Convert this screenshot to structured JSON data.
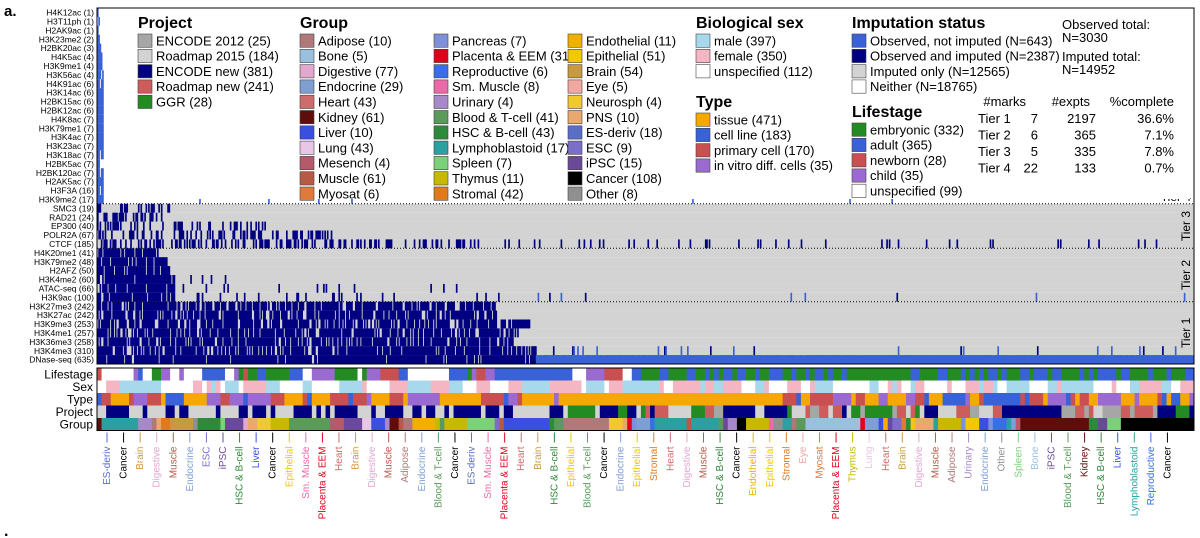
{
  "panel_label": "a.",
  "footer_mark": ".",
  "chart_data": {
    "type": "heatmap",
    "title": "",
    "marks": [
      {
        "name": "H4K12ac",
        "n": 1,
        "tier": 4
      },
      {
        "name": "H3T11ph",
        "n": 1,
        "tier": 4
      },
      {
        "name": "H2AK9ac",
        "n": 1,
        "tier": 4
      },
      {
        "name": "H3K23me2",
        "n": 2,
        "tier": 4
      },
      {
        "name": "H2BK20ac",
        "n": 3,
        "tier": 4
      },
      {
        "name": "H4K5ac",
        "n": 4,
        "tier": 4
      },
      {
        "name": "H3K9me1",
        "n": 4,
        "tier": 4
      },
      {
        "name": "H3K56ac",
        "n": 4,
        "tier": 4
      },
      {
        "name": "H4K91ac",
        "n": 6,
        "tier": 4
      },
      {
        "name": "H3K14ac",
        "n": 6,
        "tier": 4
      },
      {
        "name": "H2BK15ac",
        "n": 6,
        "tier": 4
      },
      {
        "name": "H2BK12ac",
        "n": 6,
        "tier": 4
      },
      {
        "name": "H4K8ac",
        "n": 7,
        "tier": 4
      },
      {
        "name": "H3K79me1",
        "n": 7,
        "tier": 4
      },
      {
        "name": "H3K4ac",
        "n": 7,
        "tier": 4
      },
      {
        "name": "H3K23ac",
        "n": 7,
        "tier": 4
      },
      {
        "name": "H3K18ac",
        "n": 7,
        "tier": 4
      },
      {
        "name": "H2BK5ac",
        "n": 7,
        "tier": 4
      },
      {
        "name": "H2BK120ac",
        "n": 7,
        "tier": 4
      },
      {
        "name": "H2AK5ac",
        "n": 7,
        "tier": 4
      },
      {
        "name": "H3F3A",
        "n": 16,
        "tier": 4
      },
      {
        "name": "H3K9me2",
        "n": 17,
        "tier": 4
      },
      {
        "name": "SMC3",
        "n": 19,
        "tier": 3
      },
      {
        "name": "RAD21",
        "n": 24,
        "tier": 3
      },
      {
        "name": "EP300",
        "n": 40,
        "tier": 3
      },
      {
        "name": "POLR2A",
        "n": 67,
        "tier": 3
      },
      {
        "name": "CTCF",
        "n": 185,
        "tier": 3
      },
      {
        "name": "H4K20me1",
        "n": 41,
        "tier": 2
      },
      {
        "name": "H3K79me2",
        "n": 48,
        "tier": 2
      },
      {
        "name": "H2AFZ",
        "n": 50,
        "tier": 2
      },
      {
        "name": "H3K4me2",
        "n": 60,
        "tier": 2
      },
      {
        "name": "ATAC-seq",
        "n": 66,
        "tier": 2
      },
      {
        "name": "H3K9ac",
        "n": 100,
        "tier": 2
      },
      {
        "name": "H3K27me3",
        "n": 242,
        "tier": 1
      },
      {
        "name": "H3K27ac",
        "n": 242,
        "tier": 1
      },
      {
        "name": "H3K9me3",
        "n": 253,
        "tier": 1
      },
      {
        "name": "H3K4me1",
        "n": 257,
        "tier": 1
      },
      {
        "name": "H3K36me3",
        "n": 258,
        "tier": 1
      },
      {
        "name": "H3K4me3",
        "n": 310,
        "tier": 1
      },
      {
        "name": "DNase-seq",
        "n": 635,
        "tier": 1
      }
    ],
    "tier_labels": [
      "Tier 4",
      "Tier 3",
      "Tier 2",
      "Tier 1"
    ],
    "track_labels": [
      "Lifestage",
      "Sex",
      "Type",
      "Project",
      "Group"
    ],
    "legends": {
      "project": {
        "title": "Project",
        "items": [
          {
            "label": "ENCODE 2012",
            "n": 25,
            "color": "#a6a6a6"
          },
          {
            "label": "Roadmap 2015",
            "n": 184,
            "color": "#d3d3d3"
          },
          {
            "label": "ENCODE new",
            "n": 381,
            "color": "#000080"
          },
          {
            "label": "Roadmap new",
            "n": 241,
            "color": "#cd5c5c"
          },
          {
            "label": "GGR",
            "n": 28,
            "color": "#228b22"
          }
        ]
      },
      "group": {
        "title": "Group",
        "items": [
          {
            "label": "Adipose",
            "n": 10,
            "color": "#b07878"
          },
          {
            "label": "Bone",
            "n": 5,
            "color": "#9ac0e0"
          },
          {
            "label": "Digestive",
            "n": 77,
            "color": "#e3a8cf"
          },
          {
            "label": "Endocrine",
            "n": 29,
            "color": "#7f9fd0"
          },
          {
            "label": "Heart",
            "n": 43,
            "color": "#d06b6b"
          },
          {
            "label": "Kidney",
            "n": 61,
            "color": "#5e0d0d"
          },
          {
            "label": "Liver",
            "n": 10,
            "color": "#3a4fe0"
          },
          {
            "label": "Lung",
            "n": 43,
            "color": "#e8c6e6"
          },
          {
            "label": "Mesench",
            "n": 4,
            "color": "#b45a6a"
          },
          {
            "label": "Muscle",
            "n": 61,
            "color": "#b65a46"
          },
          {
            "label": "Myosat",
            "n": 6,
            "color": "#e07a3a"
          },
          {
            "label": "Pancreas",
            "n": 7,
            "color": "#7f8fd8"
          },
          {
            "label": "Placenta & EEM",
            "n": 31,
            "color": "#e0001a"
          },
          {
            "label": "Reproductive",
            "n": 6,
            "color": "#3a6ee8"
          },
          {
            "label": "Sm. Muscle",
            "n": 8,
            "color": "#e86aa8"
          },
          {
            "label": "Urinary",
            "n": 4,
            "color": "#a889c8"
          },
          {
            "label": "Blood & T-cell",
            "n": 41,
            "color": "#5a9a5a"
          },
          {
            "label": "HSC & B-cell",
            "n": 43,
            "color": "#2e8a3a"
          },
          {
            "label": "Lymphoblastoid",
            "n": 17,
            "color": "#2aa0a0"
          },
          {
            "label": "Spleen",
            "n": 7,
            "color": "#7cd07a"
          },
          {
            "label": "Thymus",
            "n": 11,
            "color": "#c8b800"
          },
          {
            "label": "Stromal",
            "n": 42,
            "color": "#e07a1a"
          },
          {
            "label": "Endothelial",
            "n": 11,
            "color": "#f0b000"
          },
          {
            "label": "Epithelial",
            "n": 51,
            "color": "#f2c800"
          },
          {
            "label": "Brain",
            "n": 54,
            "color": "#c89a40"
          },
          {
            "label": "Eye",
            "n": 5,
            "color": "#f0a8a0"
          },
          {
            "label": "Neurosph",
            "n": 4,
            "color": "#f0c830"
          },
          {
            "label": "PNS",
            "n": 10,
            "color": "#e8a870"
          },
          {
            "label": "ES-deriv",
            "n": 18,
            "color": "#5a6ec8"
          },
          {
            "label": "ESC",
            "n": 9,
            "color": "#7a6ec8"
          },
          {
            "label": "iPSC",
            "n": 15,
            "color": "#6a4a98"
          },
          {
            "label": "Cancer",
            "n": 108,
            "color": "#000000"
          },
          {
            "label": "Other",
            "n": 8,
            "color": "#909090"
          }
        ]
      },
      "sex": {
        "title": "Biological sex",
        "items": [
          {
            "label": "male",
            "n": 397,
            "color": "#a8d8ec"
          },
          {
            "label": "female",
            "n": 350,
            "color": "#f4b6c2"
          },
          {
            "label": "unspecified",
            "n": 112,
            "color": "#ffffff"
          }
        ]
      },
      "type": {
        "title": "Type",
        "items": [
          {
            "label": "tissue",
            "n": 471,
            "color": "#f5a800"
          },
          {
            "label": "cell line",
            "n": 183,
            "color": "#3a62d8"
          },
          {
            "label": "primary cell",
            "n": 170,
            "color": "#c85050"
          },
          {
            "label": "in vitro diff. cells",
            "n": 35,
            "color": "#9a6ad0"
          }
        ]
      },
      "imputation": {
        "title": "Imputation status",
        "items": [
          {
            "label": "Observed, not imputed",
            "n": 643,
            "color": "#3a62d8"
          },
          {
            "label": "Observed and imputed",
            "n": 2387,
            "color": "#000080"
          },
          {
            "label": "Imputed only",
            "n": 12565,
            "color": "#d3d3d3"
          },
          {
            "label": "Neither",
            "n": 18765,
            "color": "#ffffff"
          }
        ]
      },
      "lifestage": {
        "title": "Lifestage",
        "items": [
          {
            "label": "embryonic",
            "n": 332,
            "color": "#228b22"
          },
          {
            "label": "adult",
            "n": 365,
            "color": "#3a62d8"
          },
          {
            "label": "newborn",
            "n": 28,
            "color": "#c85050"
          },
          {
            "label": "child",
            "n": 35,
            "color": "#9a6ad0"
          },
          {
            "label": "unspecified",
            "n": 99,
            "color": "#ffffff"
          }
        ]
      }
    },
    "totals": {
      "observed_label": "Observed total:",
      "observed": "N=3030",
      "imputed_label": "Imputed total:",
      "imputed": "N=14952"
    },
    "tier_table": {
      "headers": [
        "#marks",
        "#expts",
        "%complete"
      ],
      "rows": [
        {
          "tier": "Tier 1",
          "marks": 7,
          "expts": 2197,
          "complete": "36.6%"
        },
        {
          "tier": "Tier 2",
          "marks": 6,
          "expts": 365,
          "complete": "7.1%"
        },
        {
          "tier": "Tier 3",
          "marks": 5,
          "expts": 335,
          "complete": "7.8%"
        },
        {
          "tier": "Tier 4",
          "marks": 22,
          "expts": 133,
          "complete": "0.7%"
        }
      ]
    },
    "group_axis_labels": [
      {
        "text": "ES-deriv",
        "color": "#5a6ec8"
      },
      {
        "text": "Cancer",
        "color": "#000000"
      },
      {
        "text": "Brain",
        "color": "#c89a40"
      },
      {
        "text": "Digestive",
        "color": "#e3a8cf"
      },
      {
        "text": "Muscle",
        "color": "#b65a46"
      },
      {
        "text": "Endocrine",
        "color": "#7f9fd0"
      },
      {
        "text": "ESC",
        "color": "#7a6ec8"
      },
      {
        "text": "iPSC",
        "color": "#6a4a98"
      },
      {
        "text": "HSC & B-cell",
        "color": "#2e8a3a"
      },
      {
        "text": "Liver",
        "color": "#3a4fe0"
      },
      {
        "text": "Cancer",
        "color": "#000000"
      },
      {
        "text": "Epithelial",
        "color": "#f2c800"
      },
      {
        "text": "Sm. Muscle",
        "color": "#e86aa8"
      },
      {
        "text": "Placenta & EEM",
        "color": "#e0001a"
      },
      {
        "text": "Heart",
        "color": "#d06b6b"
      },
      {
        "text": "Brain",
        "color": "#c89a40"
      },
      {
        "text": "Digestive",
        "color": "#e3a8cf"
      },
      {
        "text": "Muscle",
        "color": "#b65a46"
      },
      {
        "text": "Adipose",
        "color": "#b07878"
      },
      {
        "text": "Endocrine",
        "color": "#7f9fd0"
      },
      {
        "text": "Blood & T-cell",
        "color": "#5a9a5a"
      },
      {
        "text": "Cancer",
        "color": "#000000"
      },
      {
        "text": "ES-deriv",
        "color": "#5a6ec8"
      },
      {
        "text": "Sm. Muscle",
        "color": "#e86aa8"
      },
      {
        "text": "Placenta & EEM",
        "color": "#e0001a"
      },
      {
        "text": "Heart",
        "color": "#d06b6b"
      },
      {
        "text": "Brain",
        "color": "#c89a40"
      },
      {
        "text": "HSC & B-cell",
        "color": "#2e8a3a"
      },
      {
        "text": "Epithelial",
        "color": "#f2c800"
      },
      {
        "text": "Blood & T-cell",
        "color": "#5a9a5a"
      },
      {
        "text": "Cancer",
        "color": "#000000"
      },
      {
        "text": "Endocrine",
        "color": "#7f9fd0"
      },
      {
        "text": "Epithelial",
        "color": "#f2c800"
      },
      {
        "text": "Stromal",
        "color": "#e07a1a"
      },
      {
        "text": "Heart",
        "color": "#d06b6b"
      },
      {
        "text": "Digestive",
        "color": "#e3a8cf"
      },
      {
        "text": "Muscle",
        "color": "#b65a46"
      },
      {
        "text": "HSC & B-cell",
        "color": "#2e8a3a"
      },
      {
        "text": "Cancer",
        "color": "#000000"
      },
      {
        "text": "Endothelial",
        "color": "#f0b000"
      },
      {
        "text": "Epithelial",
        "color": "#f2c800"
      },
      {
        "text": "Stromal",
        "color": "#e07a1a"
      },
      {
        "text": "Eye",
        "color": "#f0a8a0"
      },
      {
        "text": "Myosat",
        "color": "#e07a3a"
      },
      {
        "text": "Placenta & EEM",
        "color": "#e0001a"
      },
      {
        "text": "Thymus",
        "color": "#c8b800"
      },
      {
        "text": "Lung",
        "color": "#e8c6e6"
      },
      {
        "text": "Heart",
        "color": "#d06b6b"
      },
      {
        "text": "Brain",
        "color": "#c89a40"
      },
      {
        "text": "Digestive",
        "color": "#e3a8cf"
      },
      {
        "text": "Muscle",
        "color": "#b65a46"
      },
      {
        "text": "Adipose",
        "color": "#b07878"
      },
      {
        "text": "Urinary",
        "color": "#a889c8"
      },
      {
        "text": "Endocrine",
        "color": "#7f9fd0"
      },
      {
        "text": "Other",
        "color": "#909090"
      },
      {
        "text": "Spleen",
        "color": "#7cd07a"
      },
      {
        "text": "Bone",
        "color": "#9ac0e0"
      },
      {
        "text": "iPSC",
        "color": "#6a4a98"
      },
      {
        "text": "Blood & T-cell",
        "color": "#5a9a5a"
      },
      {
        "text": "Kidney",
        "color": "#5e0d0d"
      },
      {
        "text": "HSC & B-cell",
        "color": "#2e8a3a"
      },
      {
        "text": "Liver",
        "color": "#3a4fe0"
      },
      {
        "text": "Lymphoblastoid",
        "color": "#2aa0a0"
      },
      {
        "text": "Reproductive",
        "color": "#3a6ee8"
      },
      {
        "text": "Cancer",
        "color": "#000000"
      }
    ],
    "group_axis_sizes": [
      1,
      1,
      1,
      1,
      1,
      1,
      1,
      1,
      1,
      1,
      1,
      1,
      1,
      1,
      1,
      1,
      1,
      1,
      1,
      1,
      1,
      1,
      1,
      1,
      1,
      1,
      1,
      1,
      1,
      1,
      1,
      1,
      1,
      1,
      1,
      1,
      1,
      1,
      1,
      1,
      1,
      1,
      1,
      1,
      1,
      1,
      1,
      1,
      1,
      1,
      1,
      1,
      1,
      1,
      1,
      1,
      1,
      1,
      1,
      1,
      1,
      1,
      1,
      1
    ]
  }
}
